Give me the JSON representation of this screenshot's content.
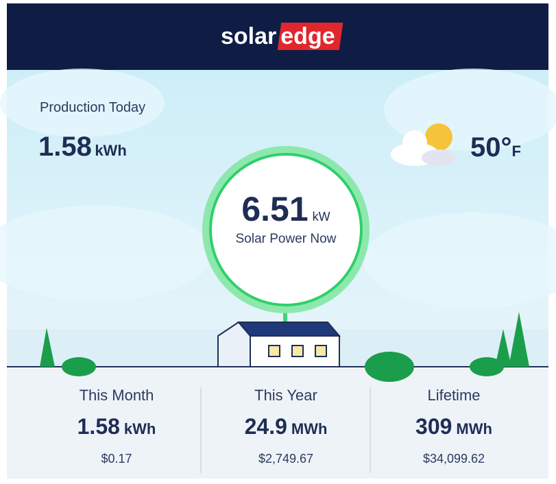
{
  "header": {
    "logo_solar": "solar",
    "logo_edge": "edge"
  },
  "production_today": {
    "label": "Production Today",
    "value": "1.58",
    "unit": "kWh"
  },
  "weather": {
    "temperature": "50°",
    "unit": "F"
  },
  "power_now": {
    "value": "6.51",
    "unit": "kW",
    "label": "Solar Power Now"
  },
  "stats": [
    {
      "label": "This Month",
      "value": "1.58",
      "unit": "kWh",
      "money": "$0.17"
    },
    {
      "label": "This Year",
      "value": "24.9",
      "unit": "MWh",
      "money": "$2,749.67"
    },
    {
      "label": "Lifetime",
      "value": "309",
      "unit": "MWh",
      "money": "$34,099.62"
    }
  ]
}
